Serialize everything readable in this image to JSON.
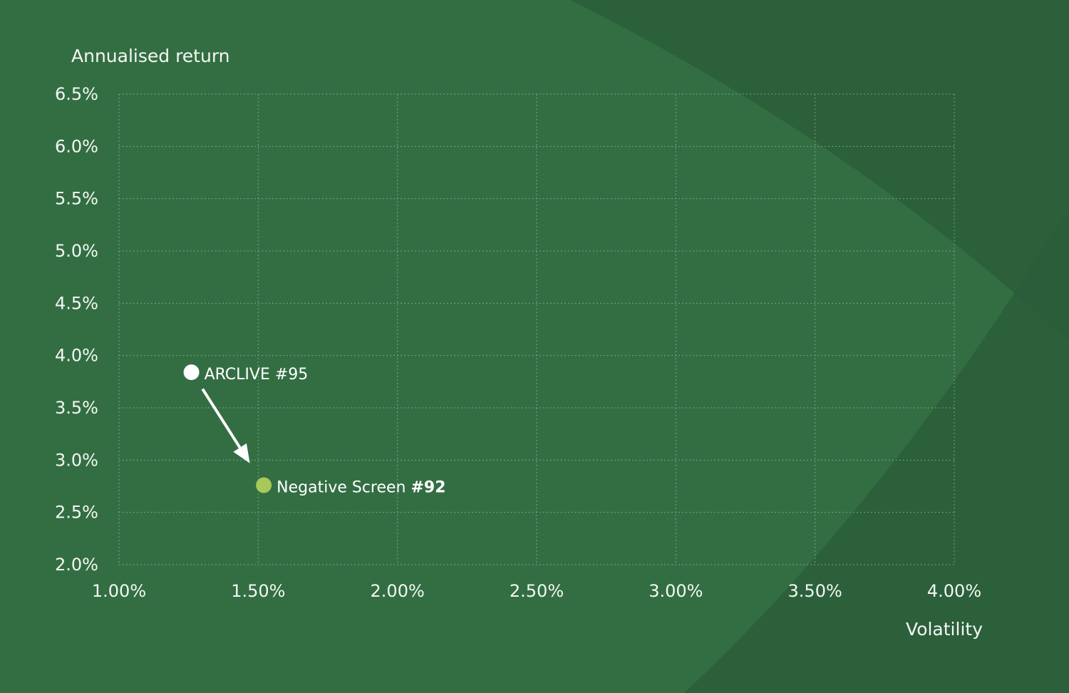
{
  "chart_data": {
    "type": "scatter",
    "xlabel": "Volatility",
    "ylabel": "Annualised return",
    "xlim": [
      1.0,
      4.0
    ],
    "ylim": [
      2.0,
      6.5
    ],
    "x_ticks": [
      1.0,
      1.5,
      2.0,
      2.5,
      3.0,
      3.5,
      4.0
    ],
    "x_tick_labels": [
      "1.00%",
      "1.50%",
      "2.00%",
      "2.50%",
      "3.00%",
      "3.50%",
      "4.00%"
    ],
    "y_ticks": [
      2.0,
      2.5,
      3.0,
      3.5,
      4.0,
      4.5,
      5.0,
      5.5,
      6.0,
      6.5
    ],
    "y_tick_labels": [
      "2.0%",
      "2.5%",
      "3.0%",
      "3.5%",
      "4.0%",
      "4.5%",
      "5.0%",
      "5.5%",
      "6.0%",
      "6.5%"
    ],
    "grid": true,
    "points": [
      {
        "label_main": "ARCLIVE #95",
        "label_bold": "",
        "x": 1.26,
        "y": 3.84,
        "color": "#ffffff"
      },
      {
        "label_main": "Negative Screen ",
        "label_bold": "#92",
        "x": 1.52,
        "y": 2.76,
        "color": "#a8c957"
      }
    ],
    "annotation_arrow": {
      "from": [
        1.3,
        3.68
      ],
      "to": [
        1.47,
        2.97
      ],
      "color": "#ffffff"
    }
  },
  "colors": {
    "background": "#336e43",
    "background_dark": "#2a5e3b",
    "background_light": "#3a7a4a",
    "text": "#f4f7f2"
  }
}
